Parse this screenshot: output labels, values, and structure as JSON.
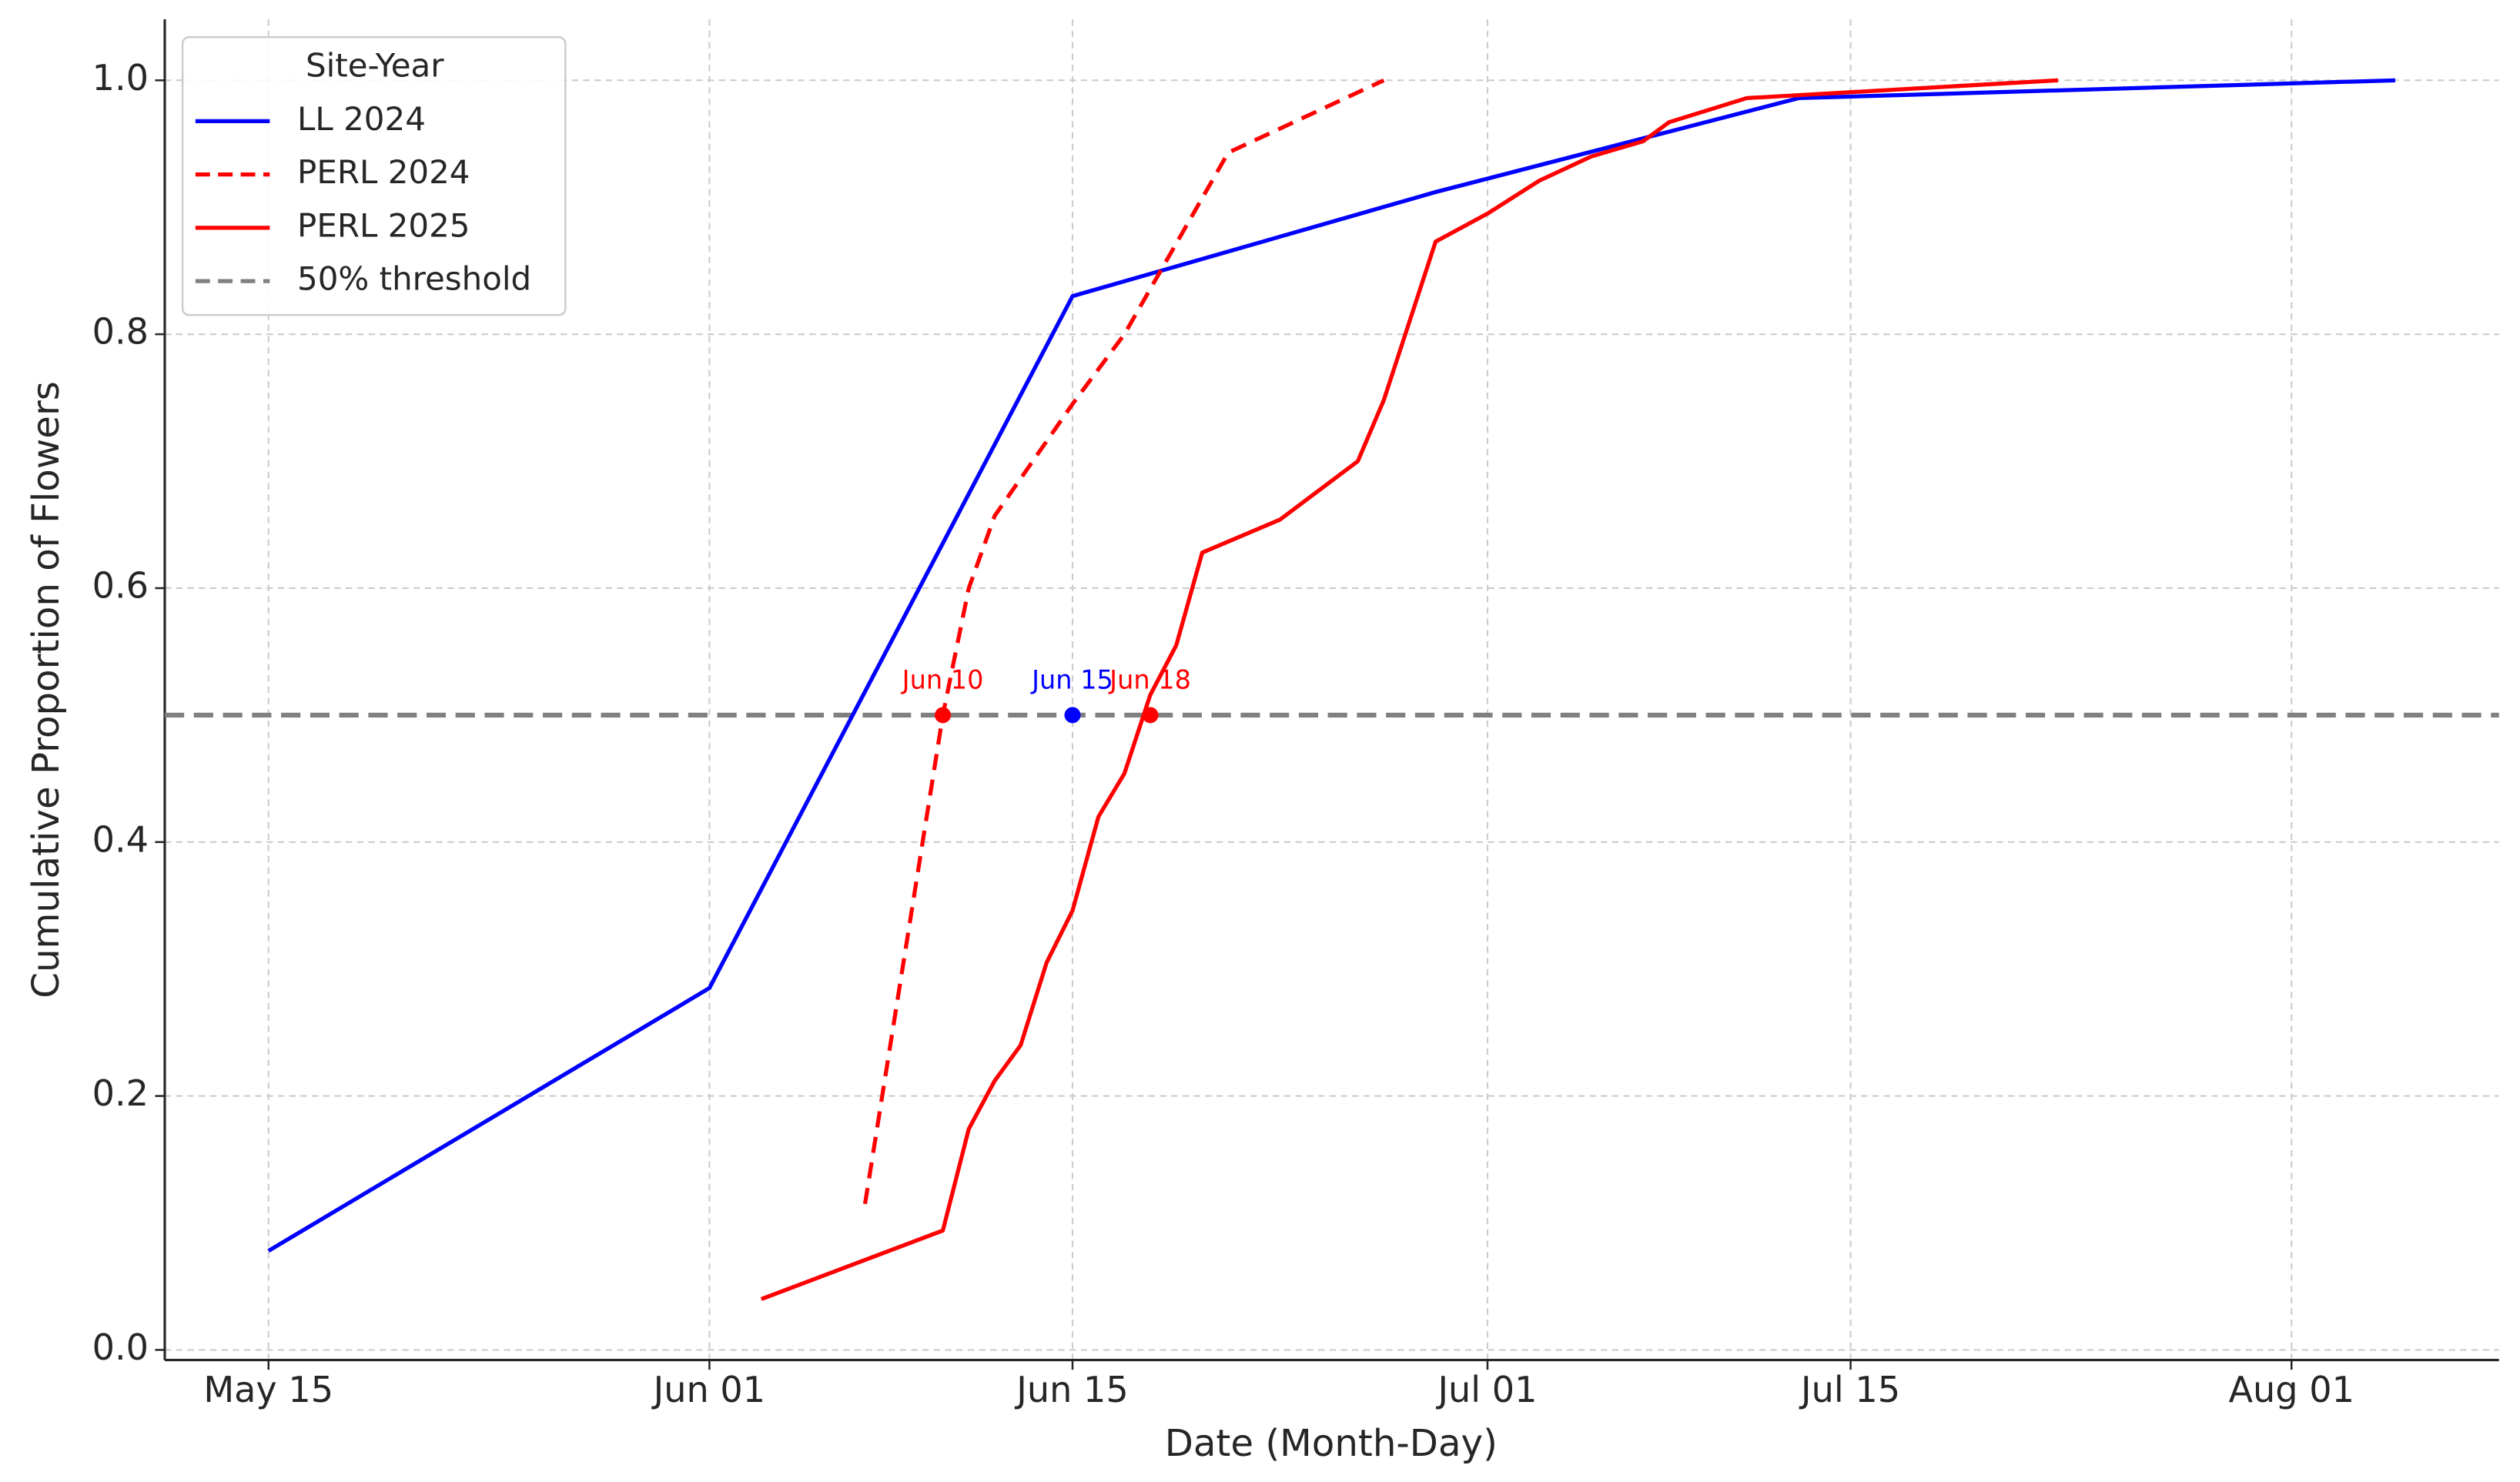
{
  "chart_data": {
    "type": "line",
    "xlabel": "Date (Month-Day)",
    "ylabel": "Cumulative Proportion of Flowers",
    "xlim": [
      "05-11",
      "08-09"
    ],
    "xticks": [
      {
        "value": "05-15",
        "label": "May 15"
      },
      {
        "value": "06-01",
        "label": "Jun 01"
      },
      {
        "value": "06-15",
        "label": "Jun 15"
      },
      {
        "value": "07-01",
        "label": "Jul 01"
      },
      {
        "value": "07-15",
        "label": "Jul 15"
      },
      {
        "value": "08-01",
        "label": "Aug 01"
      }
    ],
    "ylim": [
      -0.008,
      1.048
    ],
    "yticks": [
      {
        "value": 0,
        "label": "0.0"
      },
      0.2,
      0.4,
      0.6,
      0.8,
      {
        "value": 1,
        "label": "1.0"
      }
    ],
    "grid": true,
    "legend_title": "Site-Year",
    "legend_position": "upper left",
    "series": [
      {
        "name": "LL 2024",
        "color": "#0000ff",
        "style": "solid",
        "x": [
          "05-15",
          "06-01",
          "06-15",
          "06-29",
          "07-13",
          "08-05"
        ],
        "values": [
          0.078,
          0.285,
          0.83,
          0.912,
          0.986,
          1.0
        ]
      },
      {
        "name": "PERL 2024",
        "color": "#ff0000",
        "style": "dashed",
        "x": [
          "06-07",
          "06-10",
          "06-11",
          "06-12",
          "06-15",
          "06-17",
          "06-21",
          "06-27"
        ],
        "values": [
          0.115,
          0.5,
          0.6,
          0.657,
          0.745,
          0.8,
          0.943,
          1.0
        ]
      },
      {
        "name": "PERL 2025",
        "color": "#ff0000",
        "style": "solid",
        "x": [
          "06-03",
          "06-10",
          "06-11",
          "06-12",
          "06-13",
          "06-14",
          "06-15",
          "06-16",
          "06-17",
          "06-18",
          "06-19",
          "06-20",
          "06-23",
          "06-26",
          "06-27",
          "06-29",
          "07-01",
          "07-03",
          "07-05",
          "07-07",
          "07-08",
          "07-11",
          "07-23"
        ],
        "values": [
          0.04,
          0.094,
          0.174,
          0.212,
          0.24,
          0.305,
          0.346,
          0.42,
          0.454,
          0.516,
          0.555,
          0.628,
          0.654,
          0.7,
          0.748,
          0.873,
          0.895,
          0.921,
          0.94,
          0.952,
          0.967,
          0.986,
          1.0
        ]
      }
    ],
    "threshold": {
      "name": "50% threshold",
      "value": 0.5,
      "color": "#808080"
    },
    "annotations": [
      {
        "x": "06-10",
        "y": 0.5,
        "label": "Jun 10",
        "color": "#ff0000"
      },
      {
        "x": "06-15",
        "y": 0.5,
        "label": "Jun 15",
        "color": "#0000ff"
      },
      {
        "x": "06-18",
        "y": 0.5,
        "label": "Jun 18",
        "color": "#ff0000"
      }
    ]
  }
}
